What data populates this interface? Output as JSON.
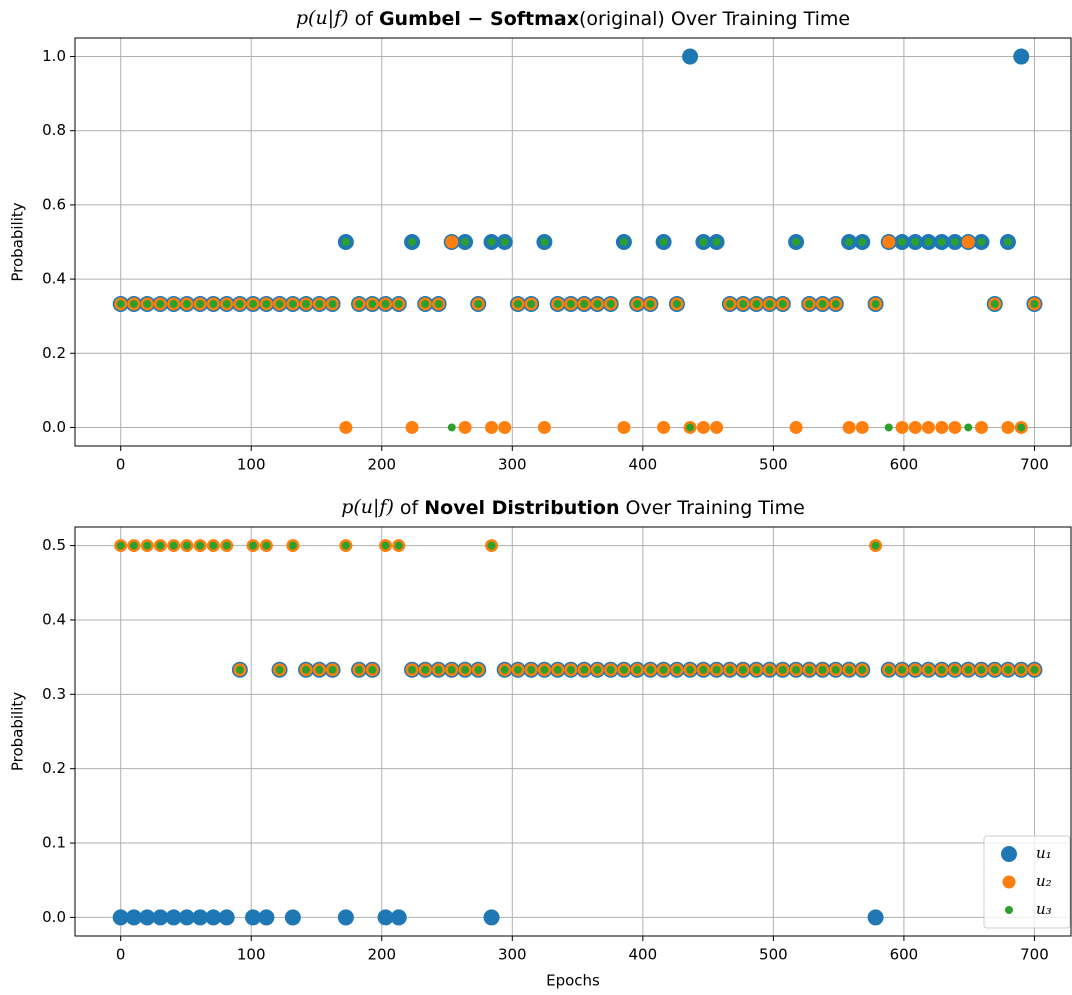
{
  "chart_data": [
    {
      "type": "scatter",
      "title": [
        "p(u|f)",
        " of ",
        "Gumbel − Softmax",
        "(original) Over Training Time"
      ],
      "ylabel": "Probability",
      "x": [
        0,
        10.1,
        20.3,
        30.4,
        40.6,
        50.7,
        60.9,
        71.0,
        81.2,
        91.3,
        101.4,
        111.6,
        121.7,
        131.9,
        142.0,
        152.2,
        162.3,
        172.5,
        182.6,
        192.8,
        202.9,
        213.0,
        223.2,
        233.3,
        243.5,
        253.6,
        263.8,
        273.9,
        284.1,
        294.2,
        304.3,
        314.5,
        324.6,
        334.8,
        344.9,
        355.1,
        365.2,
        375.4,
        385.5,
        395.7,
        405.8,
        415.9,
        426.1,
        436.2,
        446.4,
        456.5,
        466.7,
        476.8,
        487.0,
        497.1,
        507.2,
        517.4,
        527.5,
        537.7,
        547.8,
        558.0,
        568.1,
        578.3,
        588.4,
        598.6,
        608.7,
        618.8,
        629.0,
        639.1,
        649.3,
        659.4,
        669.6,
        679.7,
        689.9,
        700
      ],
      "series": [
        {
          "name": "u₁",
          "color": "#1f77b4",
          "values": [
            0.333,
            0.333,
            0.333,
            0.333,
            0.333,
            0.333,
            0.333,
            0.333,
            0.333,
            0.333,
            0.333,
            0.333,
            0.333,
            0.333,
            0.333,
            0.333,
            0.333,
            0.5,
            0.333,
            0.333,
            0.333,
            0.333,
            0.5,
            0.333,
            0.333,
            0.5,
            0.5,
            0.333,
            0.5,
            0.5,
            0.333,
            0.333,
            0.5,
            0.333,
            0.333,
            0.333,
            0.333,
            0.333,
            0.5,
            0.333,
            0.333,
            0.5,
            0.333,
            1,
            0.5,
            0.5,
            0.333,
            0.333,
            0.333,
            0.333,
            0.333,
            0.5,
            0.333,
            0.333,
            0.333,
            0.5,
            0.5,
            0.333,
            0.5,
            0.5,
            0.5,
            0.5,
            0.5,
            0.5,
            0.5,
            0.5,
            0.333,
            0.5,
            1,
            0.333
          ]
        },
        {
          "name": "u₂",
          "color": "#ff7f0e",
          "values": [
            0.333,
            0.333,
            0.333,
            0.333,
            0.333,
            0.333,
            0.333,
            0.333,
            0.333,
            0.333,
            0.333,
            0.333,
            0.333,
            0.333,
            0.333,
            0.333,
            0.333,
            0,
            0.333,
            0.333,
            0.333,
            0.333,
            0,
            0.333,
            0.333,
            0.5,
            0,
            0.333,
            0,
            0,
            0.333,
            0.333,
            0,
            0.333,
            0.333,
            0.333,
            0.333,
            0.333,
            0,
            0.333,
            0.333,
            0,
            0.333,
            0,
            0,
            0,
            0.333,
            0.333,
            0.333,
            0.333,
            0.333,
            0,
            0.333,
            0.333,
            0.333,
            0,
            0,
            0.333,
            0.5,
            0,
            0,
            0,
            0,
            0,
            0.5,
            0,
            0.333,
            0,
            0,
            0.333
          ]
        },
        {
          "name": "u₃",
          "color": "#2ca02c",
          "values": [
            0.333,
            0.333,
            0.333,
            0.333,
            0.333,
            0.333,
            0.333,
            0.333,
            0.333,
            0.333,
            0.333,
            0.333,
            0.333,
            0.333,
            0.333,
            0.333,
            0.333,
            0.5,
            0.333,
            0.333,
            0.333,
            0.333,
            0.5,
            0.333,
            0.333,
            0,
            0.5,
            0.333,
            0.5,
            0.5,
            0.333,
            0.333,
            0.5,
            0.333,
            0.333,
            0.333,
            0.333,
            0.333,
            0.5,
            0.333,
            0.333,
            0.5,
            0.333,
            0,
            0.5,
            0.5,
            0.333,
            0.333,
            0.333,
            0.333,
            0.333,
            0.5,
            0.333,
            0.333,
            0.333,
            0.5,
            0.5,
            0.333,
            0,
            0.5,
            0.5,
            0.5,
            0.5,
            0.5,
            0,
            0.5,
            0.333,
            0.5,
            0,
            0.333
          ]
        }
      ],
      "xlim": [
        -35,
        728
      ],
      "ylim": [
        -0.05,
        1.05
      ],
      "xticks": [
        0,
        100,
        200,
        300,
        400,
        500,
        600,
        700
      ],
      "yticks": [
        {
          "value": 0,
          "label": "0.0"
        },
        0.2,
        0.4,
        0.6,
        0.8,
        {
          "value": 1,
          "label": "1.0"
        }
      ],
      "grid": true
    },
    {
      "type": "scatter",
      "title": [
        "p(u|f)",
        " of ",
        "Novel Distribution",
        " Over Training Time"
      ],
      "ylabel": "Probability",
      "xlabel": "Epochs",
      "x": [
        0,
        10.1,
        20.3,
        30.4,
        40.6,
        50.7,
        60.9,
        71.0,
        81.2,
        91.3,
        101.4,
        111.6,
        121.7,
        131.9,
        142.0,
        152.2,
        162.3,
        172.5,
        182.6,
        192.8,
        202.9,
        213.0,
        223.2,
        233.3,
        243.5,
        253.6,
        263.8,
        273.9,
        284.1,
        294.2,
        304.3,
        314.5,
        324.6,
        334.8,
        344.9,
        355.1,
        365.2,
        375.4,
        385.5,
        395.7,
        405.8,
        415.9,
        426.1,
        436.2,
        446.4,
        456.5,
        466.7,
        476.8,
        487.0,
        497.1,
        507.2,
        517.4,
        527.5,
        537.7,
        547.8,
        558.0,
        568.1,
        578.3,
        588.4,
        598.6,
        608.7,
        618.8,
        629.0,
        639.1,
        649.3,
        659.4,
        669.6,
        679.7,
        689.9,
        700
      ],
      "series": [
        {
          "name": "u₁",
          "color": "#1f77b4",
          "values": [
            0,
            0,
            0,
            0,
            0,
            0,
            0,
            0,
            0,
            0.333,
            0,
            0,
            0.333,
            0,
            0.333,
            0.333,
            0.333,
            0,
            0.333,
            0.333,
            0,
            0,
            0.333,
            0.333,
            0.333,
            0.333,
            0.333,
            0.333,
            0,
            0.333,
            0.333,
            0.333,
            0.333,
            0.333,
            0.333,
            0.333,
            0.333,
            0.333,
            0.333,
            0.333,
            0.333,
            0.333,
            0.333,
            0.333,
            0.333,
            0.333,
            0.333,
            0.333,
            0.333,
            0.333,
            0.333,
            0.333,
            0.333,
            0.333,
            0.333,
            0.333,
            0.333,
            0,
            0.333,
            0.333,
            0.333,
            0.333,
            0.333,
            0.333,
            0.333,
            0.333,
            0.333,
            0.333,
            0.333,
            0.333
          ]
        },
        {
          "name": "u₂",
          "color": "#ff7f0e",
          "values": [
            0.5,
            0.5,
            0.5,
            0.5,
            0.5,
            0.5,
            0.5,
            0.5,
            0.5,
            0.333,
            0.5,
            0.5,
            0.333,
            0.5,
            0.333,
            0.333,
            0.333,
            0.5,
            0.333,
            0.333,
            0.5,
            0.5,
            0.333,
            0.333,
            0.333,
            0.333,
            0.333,
            0.333,
            0.5,
            0.333,
            0.333,
            0.333,
            0.333,
            0.333,
            0.333,
            0.333,
            0.333,
            0.333,
            0.333,
            0.333,
            0.333,
            0.333,
            0.333,
            0.333,
            0.333,
            0.333,
            0.333,
            0.333,
            0.333,
            0.333,
            0.333,
            0.333,
            0.333,
            0.333,
            0.333,
            0.333,
            0.333,
            0.5,
            0.333,
            0.333,
            0.333,
            0.333,
            0.333,
            0.333,
            0.333,
            0.333,
            0.333,
            0.333,
            0.333,
            0.333
          ]
        },
        {
          "name": "u₃",
          "color": "#2ca02c",
          "values": [
            0.5,
            0.5,
            0.5,
            0.5,
            0.5,
            0.5,
            0.5,
            0.5,
            0.5,
            0.333,
            0.5,
            0.5,
            0.333,
            0.5,
            0.333,
            0.333,
            0.333,
            0.5,
            0.333,
            0.333,
            0.5,
            0.5,
            0.333,
            0.333,
            0.333,
            0.333,
            0.333,
            0.333,
            0.5,
            0.333,
            0.333,
            0.333,
            0.333,
            0.333,
            0.333,
            0.333,
            0.333,
            0.333,
            0.333,
            0.333,
            0.333,
            0.333,
            0.333,
            0.333,
            0.333,
            0.333,
            0.333,
            0.333,
            0.333,
            0.333,
            0.333,
            0.333,
            0.333,
            0.333,
            0.333,
            0.333,
            0.333,
            0.5,
            0.333,
            0.333,
            0.333,
            0.333,
            0.333,
            0.333,
            0.333,
            0.333,
            0.333,
            0.333,
            0.333,
            0.333
          ]
        }
      ],
      "xlim": [
        -35,
        728
      ],
      "ylim": [
        -0.025,
        0.525
      ],
      "xticks": [
        0,
        100,
        200,
        300,
        400,
        500,
        600,
        700
      ],
      "yticks": [
        {
          "value": 0,
          "label": "0.0"
        },
        0.1,
        0.2,
        0.3,
        0.4,
        0.5
      ],
      "grid": true,
      "legend": "lower right"
    }
  ]
}
